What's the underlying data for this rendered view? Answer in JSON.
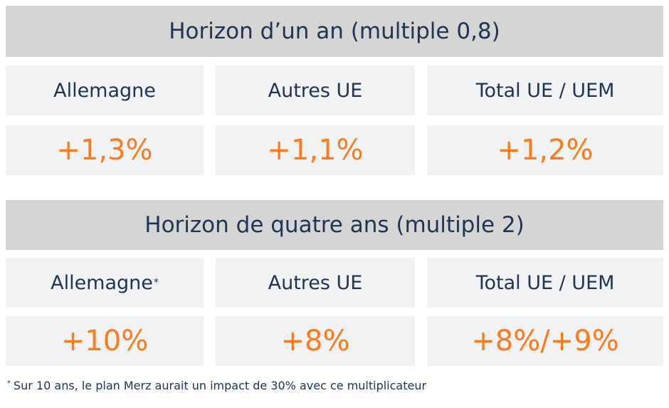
{
  "sections": [
    {
      "title": "Horizon d’un an (multiple 0,8)",
      "labels": [
        "Allemagne",
        "Autres UE",
        "Total UE / UEM"
      ],
      "values": [
        "+1,3%",
        "+1,1%",
        "+1,2%"
      ]
    },
    {
      "title": "Horizon de quatre ans (multiple 2)",
      "labels": [
        "Allemagne",
        "Autres UE",
        "Total UE / UEM"
      ],
      "label_note": "*",
      "values": [
        "+10%",
        "+8%",
        "+8%/+9%"
      ]
    }
  ],
  "footnote": {
    "marker": "*",
    "text": "Sur 10 ans, le plan Merz aurait un impact de 30% avec ce multiplicateur"
  },
  "colors": {
    "header_bg": "#d5d5d5",
    "cell_bg": "#f1f2f3",
    "text": "#1f3352",
    "value": "#ff7a1a"
  }
}
